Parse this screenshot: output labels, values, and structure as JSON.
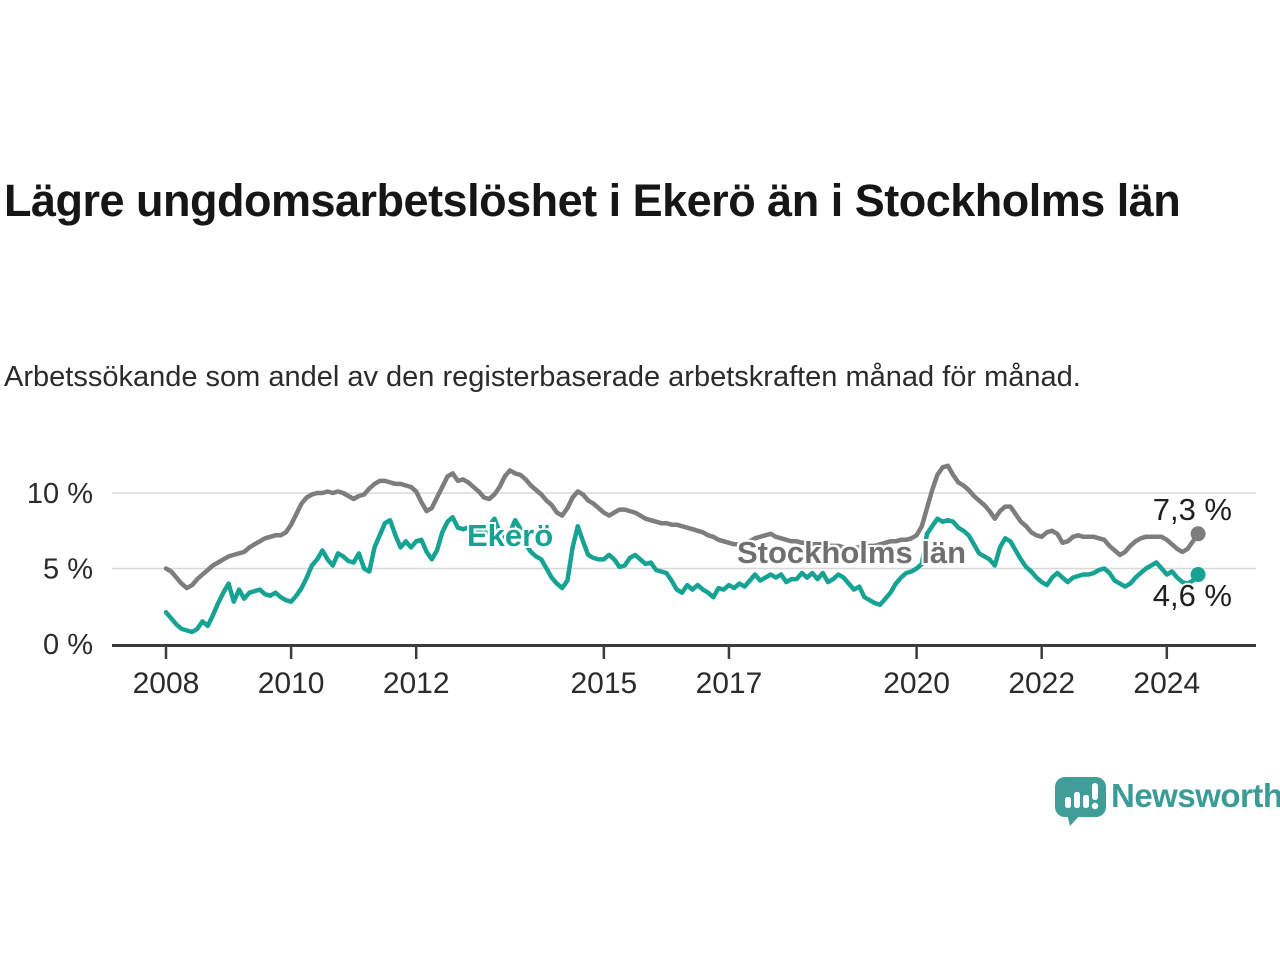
{
  "page": {
    "title": "Lägre ungdomsarbetslöshet i Ekerö än i Stockholms län",
    "subtitle": "Arbetssökande som andel av den registerbaserade arbetskraften månad för månad."
  },
  "branding": {
    "logo_text": "Newsworthy",
    "logo_icon": "newsworthy-speech-bubble-bar-chart-icon",
    "accent_color": "#3b9c97"
  },
  "chart_data": {
    "type": "line",
    "unit": "%",
    "grid": "horizontal",
    "frequency": "monthly",
    "start_year": 2008,
    "end_point": "2024-07",
    "x_axis": {
      "ticks": [
        2008,
        2010,
        2012,
        2015,
        2017,
        2020,
        2022,
        2024
      ]
    },
    "y_axis": {
      "ticks": [
        0,
        5,
        10
      ],
      "labels": [
        "0 %",
        "5 %",
        "10 %"
      ],
      "range": [
        0,
        13.5
      ]
    },
    "series": [
      {
        "name": "Stockholms län",
        "color": "#7d7d7d",
        "end_value": 7.3,
        "end_value_label": "7,3 %",
        "values": [
          5.0,
          4.8,
          4.4,
          4.0,
          3.7,
          3.9,
          4.3,
          4.6,
          4.9,
          5.2,
          5.4,
          5.6,
          5.8,
          5.9,
          6.0,
          6.1,
          6.4,
          6.6,
          6.8,
          7.0,
          7.1,
          7.2,
          7.2,
          7.4,
          7.9,
          8.6,
          9.3,
          9.7,
          9.9,
          10.0,
          10.0,
          10.1,
          10.0,
          10.1,
          10.0,
          9.8,
          9.6,
          9.8,
          9.9,
          10.3,
          10.6,
          10.8,
          10.8,
          10.7,
          10.6,
          10.6,
          10.5,
          10.4,
          10.1,
          9.4,
          8.8,
          9.0,
          9.7,
          10.4,
          11.1,
          11.3,
          10.8,
          10.9,
          10.7,
          10.4,
          10.1,
          9.7,
          9.6,
          9.9,
          10.4,
          11.1,
          11.5,
          11.3,
          11.2,
          10.9,
          10.5,
          10.2,
          9.9,
          9.5,
          9.2,
          8.7,
          8.5,
          9.0,
          9.7,
          10.1,
          9.9,
          9.5,
          9.3,
          9.0,
          8.7,
          8.5,
          8.7,
          8.9,
          8.9,
          8.8,
          8.7,
          8.5,
          8.3,
          8.2,
          8.1,
          8.0,
          8.0,
          7.9,
          7.9,
          7.8,
          7.7,
          7.6,
          7.5,
          7.4,
          7.2,
          7.1,
          6.9,
          6.8,
          6.7,
          6.6,
          6.6,
          6.7,
          6.8,
          7.0,
          7.1,
          7.2,
          7.3,
          7.1,
          7.0,
          6.9,
          6.8,
          6.8,
          6.7,
          6.7,
          6.6,
          6.6,
          6.6,
          6.5,
          6.5,
          6.5,
          6.4,
          6.4,
          6.4,
          6.4,
          6.4,
          6.5,
          6.5,
          6.6,
          6.7,
          6.8,
          6.8,
          6.9,
          6.9,
          7.0,
          7.2,
          7.8,
          9.0,
          10.2,
          11.2,
          11.7,
          11.8,
          11.2,
          10.7,
          10.5,
          10.2,
          9.8,
          9.5,
          9.2,
          8.8,
          8.3,
          8.8,
          9.1,
          9.1,
          8.6,
          8.1,
          7.8,
          7.4,
          7.2,
          7.1,
          7.4,
          7.5,
          7.3,
          6.7,
          6.8,
          7.1,
          7.2,
          7.1,
          7.1,
          7.1,
          7.0,
          6.9,
          6.5,
          6.2,
          5.9,
          6.1,
          6.5,
          6.8,
          7.0,
          7.1,
          7.1,
          7.1,
          7.1,
          6.9,
          6.6,
          6.3,
          6.1,
          6.3,
          6.8,
          7.3
        ]
      },
      {
        "name": "Ekerö",
        "color": "#16a394",
        "end_value": 4.6,
        "end_value_label": "4,6 %",
        "values": [
          2.1,
          1.7,
          1.3,
          1.0,
          0.9,
          0.8,
          1.0,
          1.5,
          1.2,
          1.9,
          2.7,
          3.4,
          4.0,
          2.8,
          3.6,
          3.0,
          3.4,
          3.5,
          3.6,
          3.3,
          3.2,
          3.4,
          3.1,
          2.9,
          2.8,
          3.2,
          3.7,
          4.4,
          5.2,
          5.6,
          6.2,
          5.6,
          5.2,
          6.0,
          5.8,
          5.5,
          5.4,
          6.0,
          5.0,
          4.8,
          6.4,
          7.2,
          8.0,
          8.2,
          7.2,
          6.4,
          6.8,
          6.4,
          6.8,
          6.9,
          6.1,
          5.6,
          6.2,
          7.4,
          8.1,
          8.4,
          7.7,
          7.6,
          7.7,
          7.5,
          7.6,
          7.2,
          7.8,
          8.3,
          7.4,
          6.9,
          7.4,
          8.2,
          7.6,
          6.6,
          6.1,
          5.8,
          5.6,
          5.0,
          4.4,
          4.0,
          3.7,
          4.2,
          6.4,
          7.8,
          6.8,
          5.9,
          5.7,
          5.6,
          5.6,
          5.9,
          5.6,
          5.1,
          5.2,
          5.7,
          5.9,
          5.6,
          5.3,
          5.4,
          4.9,
          4.8,
          4.7,
          4.2,
          3.6,
          3.4,
          3.9,
          3.6,
          3.9,
          3.6,
          3.4,
          3.1,
          3.7,
          3.6,
          3.9,
          3.7,
          4.0,
          3.8,
          4.2,
          4.6,
          4.2,
          4.4,
          4.6,
          4.4,
          4.6,
          4.1,
          4.3,
          4.3,
          4.7,
          4.4,
          4.7,
          4.3,
          4.7,
          4.1,
          4.3,
          4.6,
          4.4,
          4.0,
          3.6,
          3.8,
          3.1,
          2.9,
          2.7,
          2.6,
          3.0,
          3.4,
          4.0,
          4.4,
          4.7,
          4.8,
          5.0,
          5.3,
          7.3,
          7.8,
          8.3,
          8.1,
          8.2,
          8.1,
          7.7,
          7.5,
          7.2,
          6.6,
          6.0,
          5.8,
          5.6,
          5.2,
          6.4,
          7.0,
          6.8,
          6.2,
          5.6,
          5.1,
          4.8,
          4.4,
          4.1,
          3.9,
          4.4,
          4.7,
          4.4,
          4.1,
          4.4,
          4.5,
          4.6,
          4.6,
          4.7,
          4.9,
          5.0,
          4.7,
          4.2,
          4.0,
          3.8,
          4.0,
          4.4,
          4.7,
          5.0,
          5.2,
          5.4,
          5.0,
          4.6,
          4.8,
          4.4,
          4.1,
          4.0,
          4.2,
          4.6
        ]
      }
    ]
  }
}
